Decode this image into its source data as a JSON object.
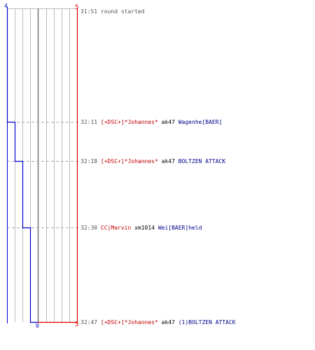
{
  "round_start": {
    "time": "31:51",
    "text": "round started"
  },
  "scale": {
    "left_top": "4",
    "right_top": "5",
    "middle_bottom": "0",
    "right_bottom": "5"
  },
  "events": [
    {
      "time": "32:11",
      "killer": "[+DSC+]*Johannes*",
      "weapon": "ak47",
      "victim": "Wagenhe[BAER]"
    },
    {
      "time": "32:18",
      "killer": "[+DSC+]*Johannes*",
      "weapon": "ak47",
      "victim": "BOLTZEN ATTACK"
    },
    {
      "time": "32:30",
      "killer": "CC|Marvin",
      "weapon": "xm1014",
      "victim": "Wei[BAER]held"
    },
    {
      "time": "32:47",
      "killer": "[+DSC+]*Johannes*",
      "weapon": "ak47",
      "victim": "(1)BOLTZEN ATTACK"
    }
  ],
  "colors": {
    "left_team": "#0000cc",
    "right_team": "#e00000",
    "grid": "#bbbbbb",
    "dash": "#aaaaaa"
  }
}
